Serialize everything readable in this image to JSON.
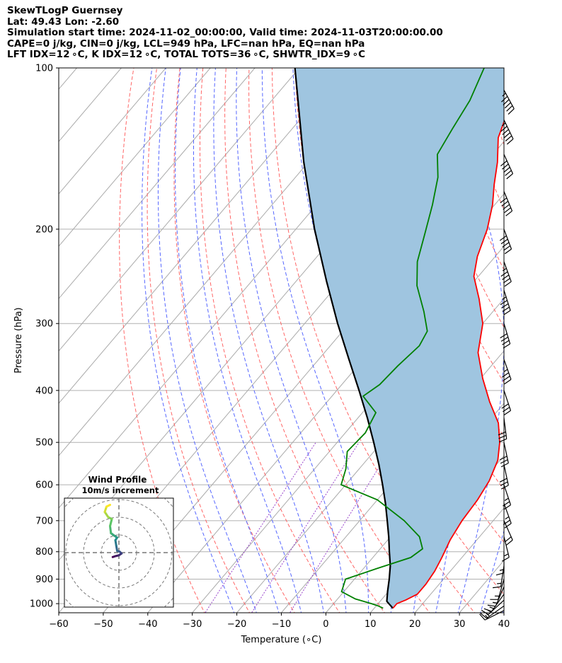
{
  "header": {
    "line1": "SkewTLogP Guernsey",
    "line2": "Lat: 49.43   Lon: -2.60",
    "line3": "Simulation start time: 2024-11-02_00:00:00, Valid time: 2024-11-03T20:00:00.00",
    "line4": "CAPE=0 j/kg, CIN=0 j/kg, LCL=949 hPa, LFC=nan hPa, EQ=nan hPa",
    "line5": "LFT IDX=12 ∘C, K IDX=12 ∘C, TOTAL TOTS=36 ∘C, SHWTR_IDX=9 ∘C"
  },
  "colors": {
    "temperature": "#ff0000",
    "dewpoint": "#008000",
    "parcel": "#000000",
    "cape_fill": "#9fc5e0",
    "dry_adiabat": "#ff6666",
    "moist_adiabat": "#5566ff",
    "mixing_ratio": "#9944cc",
    "isotherm": "#aaaaaa"
  },
  "chart_data": {
    "type": "skewt-logp",
    "xlabel": "Temperature (∘C)",
    "ylabel": "Pressure (hPa)",
    "xlim": [
      -60,
      40
    ],
    "ylim": [
      1040,
      100
    ],
    "y_scale": "log",
    "x_ticks": [
      "−60",
      "−50",
      "−40",
      "−30",
      "−20",
      "−10",
      "0",
      "10",
      "20",
      "30",
      "40"
    ],
    "y_ticks": [
      "100",
      "200",
      "300",
      "400",
      "500",
      "600",
      "700",
      "800",
      "900",
      "1000"
    ],
    "grid": true,
    "temperature_profile": [
      {
        "p": 1020,
        "t": 14.2
      },
      {
        "p": 1000,
        "t": 14.2
      },
      {
        "p": 985,
        "t": 15.5
      },
      {
        "p": 960,
        "t": 17.0
      },
      {
        "p": 920,
        "t": 17.0
      },
      {
        "p": 870,
        "t": 16.5
      },
      {
        "p": 820,
        "t": 15.5
      },
      {
        "p": 760,
        "t": 14.0
      },
      {
        "p": 700,
        "t": 13.0
      },
      {
        "p": 640,
        "t": 12.5
      },
      {
        "p": 590,
        "t": 11.5
      },
      {
        "p": 540,
        "t": 9.5
      },
      {
        "p": 500,
        "t": 6.5
      },
      {
        "p": 460,
        "t": 2.5
      },
      {
        "p": 420,
        "t": -3.5
      },
      {
        "p": 380,
        "t": -9.5
      },
      {
        "p": 340,
        "t": -15.5
      },
      {
        "p": 300,
        "t": -20.0
      },
      {
        "p": 270,
        "t": -25.5
      },
      {
        "p": 245,
        "t": -31.0
      },
      {
        "p": 225,
        "t": -34.0
      },
      {
        "p": 200,
        "t": -37.0
      },
      {
        "p": 180,
        "t": -40.5
      },
      {
        "p": 165,
        "t": -44.0
      },
      {
        "p": 150,
        "t": -47.5
      },
      {
        "p": 135,
        "t": -52.0
      },
      {
        "p": 120,
        "t": -55.0
      },
      {
        "p": 100,
        "t": -60.5
      }
    ],
    "dewpoint_profile": [
      {
        "p": 1020,
        "t": 12.0
      },
      {
        "p": 1010,
        "t": 10.5
      },
      {
        "p": 1000,
        "t": 8.5
      },
      {
        "p": 980,
        "t": 4.0
      },
      {
        "p": 950,
        "t": -0.5
      },
      {
        "p": 900,
        "t": -2.0
      },
      {
        "p": 860,
        "t": 3.0
      },
      {
        "p": 820,
        "t": 8.5
      },
      {
        "p": 790,
        "t": 9.5
      },
      {
        "p": 750,
        "t": 6.5
      },
      {
        "p": 700,
        "t": 0.0
      },
      {
        "p": 640,
        "t": -10.0
      },
      {
        "p": 600,
        "t": -21.0
      },
      {
        "p": 560,
        "t": -23.0
      },
      {
        "p": 520,
        "t": -26.0
      },
      {
        "p": 480,
        "t": -25.5
      },
      {
        "p": 440,
        "t": -27.0
      },
      {
        "p": 410,
        "t": -33.0
      },
      {
        "p": 390,
        "t": -31.5
      },
      {
        "p": 360,
        "t": -31.0
      },
      {
        "p": 330,
        "t": -30.0
      },
      {
        "p": 310,
        "t": -31.0
      },
      {
        "p": 285,
        "t": -35.5
      },
      {
        "p": 255,
        "t": -42.0
      },
      {
        "p": 230,
        "t": -46.5
      },
      {
        "p": 205,
        "t": -50.0
      },
      {
        "p": 180,
        "t": -54.0
      },
      {
        "p": 160,
        "t": -58.0
      },
      {
        "p": 145,
        "t": -62.5
      },
      {
        "p": 130,
        "t": -64.0
      },
      {
        "p": 115,
        "t": -65.5
      },
      {
        "p": 100,
        "t": -68.5
      }
    ],
    "parcel_profile": [
      {
        "p": 1020,
        "t": 14.2
      },
      {
        "p": 990,
        "t": 11.5
      },
      {
        "p": 949,
        "t": 9.8
      },
      {
        "p": 900,
        "t": 7.8
      },
      {
        "p": 850,
        "t": 5.5
      },
      {
        "p": 800,
        "t": 2.6
      },
      {
        "p": 750,
        "t": -0.4
      },
      {
        "p": 700,
        "t": -3.8
      },
      {
        "p": 650,
        "t": -7.5
      },
      {
        "p": 600,
        "t": -11.7
      },
      {
        "p": 550,
        "t": -16.4
      },
      {
        "p": 500,
        "t": -21.8
      },
      {
        "p": 450,
        "t": -27.9
      },
      {
        "p": 400,
        "t": -35.0
      },
      {
        "p": 350,
        "t": -43.2
      },
      {
        "p": 300,
        "t": -52.6
      },
      {
        "p": 250,
        "t": -63.2
      },
      {
        "p": 200,
        "t": -75.8
      },
      {
        "p": 150,
        "t": -91.0
      },
      {
        "p": 100,
        "t": -111.0
      }
    ],
    "wind_barbs": [
      {
        "p": 1030,
        "u": 8.0,
        "v": 4.0
      },
      {
        "p": 1010,
        "u": 7.0,
        "v": 5.0
      },
      {
        "p": 985,
        "u": 6.5,
        "v": 6.0
      },
      {
        "p": 960,
        "u": 5.0,
        "v": 7.0
      },
      {
        "p": 930,
        "u": 3.0,
        "v": 7.0
      },
      {
        "p": 900,
        "u": 2.0,
        "v": 7.0
      },
      {
        "p": 850,
        "u": 1.0,
        "v": 6.5
      },
      {
        "p": 800,
        "u": 0.0,
        "v": 6.5
      },
      {
        "p": 750,
        "u": -2.0,
        "v": 8.0
      },
      {
        "p": 700,
        "u": -4.0,
        "v": 9.0
      },
      {
        "p": 650,
        "u": -4.0,
        "v": 11.0
      },
      {
        "p": 600,
        "u": -4.0,
        "v": 12.0
      },
      {
        "p": 550,
        "u": -3.0,
        "v": 14.0
      },
      {
        "p": 500,
        "u": -3.0,
        "v": 14.0
      },
      {
        "p": 450,
        "u": -2.0,
        "v": 16.0
      },
      {
        "p": 400,
        "u": -5.0,
        "v": 15.0
      },
      {
        "p": 350,
        "u": -6.0,
        "v": 17.0
      },
      {
        "p": 300,
        "u": -6.0,
        "v": 20.0
      },
      {
        "p": 260,
        "u": -7.0,
        "v": 22.0
      },
      {
        "p": 230,
        "u": -8.0,
        "v": 22.0
      },
      {
        "p": 200,
        "u": -9.0,
        "v": 24.0
      },
      {
        "p": 170,
        "u": -10.0,
        "v": 24.0
      },
      {
        "p": 145,
        "u": -11.0,
        "v": 24.0
      },
      {
        "p": 125,
        "u": -12.0,
        "v": 25.0
      },
      {
        "p": 110,
        "u": -13.0,
        "v": 24.0
      }
    ],
    "hodograph": {
      "title_line1": "Wind Profile",
      "title_line2": "10m/s increment",
      "rings": 3,
      "points": [
        {
          "u": -3.5,
          "v": -2.5
        },
        {
          "u": -2.0,
          "v": -2.0
        },
        {
          "u": 0.0,
          "v": -1.5
        },
        {
          "u": 1.5,
          "v": -0.5
        },
        {
          "u": 0.5,
          "v": 0.5
        },
        {
          "u": -1.0,
          "v": 1.0
        },
        {
          "u": -1.5,
          "v": 4.0
        },
        {
          "u": -2.0,
          "v": 7.0
        },
        {
          "u": -1.0,
          "v": 8.5
        },
        {
          "u": -2.5,
          "v": 9.5
        },
        {
          "u": -4.5,
          "v": 11.0
        },
        {
          "u": -5.0,
          "v": 15.0
        },
        {
          "u": -4.0,
          "v": 19.0
        },
        {
          "u": -6.0,
          "v": 20.0
        },
        {
          "u": -8.0,
          "v": 23.0
        },
        {
          "u": -7.0,
          "v": 26.0
        },
        {
          "u": -5.0,
          "v": 27.0
        }
      ]
    }
  }
}
